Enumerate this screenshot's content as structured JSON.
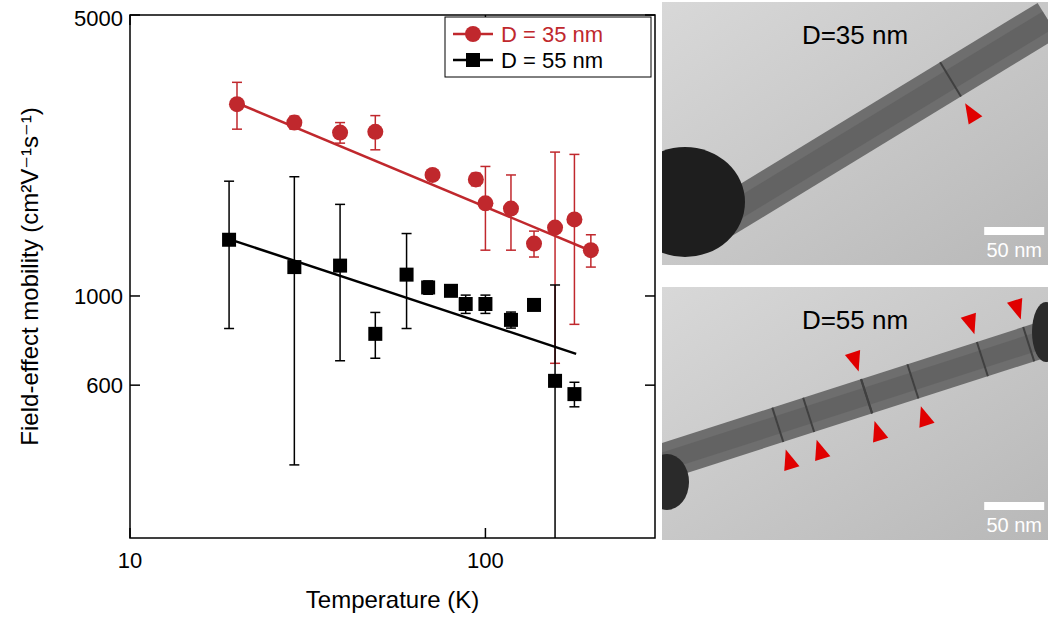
{
  "chart_data": {
    "type": "scatter",
    "x_label": "Temperature (K)",
    "y_label": "Field-effect mobility (cm²V⁻¹s⁻¹)",
    "log": true,
    "xlim": [
      10,
      300
    ],
    "xticks": [
      10,
      100
    ],
    "ylim": [
      250,
      5000
    ],
    "yticks": [
      600,
      1000,
      5000
    ],
    "legend": "upper right",
    "series": [
      {
        "name": "D = 35 nm",
        "color": "#c0282d",
        "marker": "circle",
        "x": [
          20,
          29,
          39,
          49,
          71,
          94,
          100,
          118,
          137,
          157,
          178,
          198
        ],
        "values": [
          3000,
          2700,
          2550,
          2560,
          2000,
          1950,
          1700,
          1650,
          1350,
          1480,
          1550,
          1300
        ],
        "error": [
          400,
          100,
          150,
          250,
          50,
          70,
          400,
          350,
          100,
          800,
          700,
          120
        ],
        "fit_x": [
          20,
          200
        ],
        "fit_values": [
          3020,
          1290
        ]
      },
      {
        "name": "D = 55 nm",
        "color": "#000000",
        "marker": "square",
        "x": [
          19,
          29,
          39,
          49,
          60,
          69,
          80,
          88,
          100,
          118,
          137,
          157,
          178
        ],
        "values": [
          1380,
          1180,
          1190,
          805,
          1130,
          1050,
          1030,
          955,
          955,
          872,
          950,
          615,
          570
        ],
        "error": [
          550,
          800,
          500,
          105,
          300,
          40,
          25,
          50,
          50,
          40,
          15,
          450,
          40
        ],
        "fit_x": [
          19,
          180
        ],
        "fit_values": [
          1385,
          718
        ]
      }
    ]
  },
  "images": [
    {
      "title": "D=35 nm",
      "scale_bar": "50 nm"
    },
    {
      "title": "D=55 nm",
      "scale_bar": "50 nm"
    }
  ]
}
